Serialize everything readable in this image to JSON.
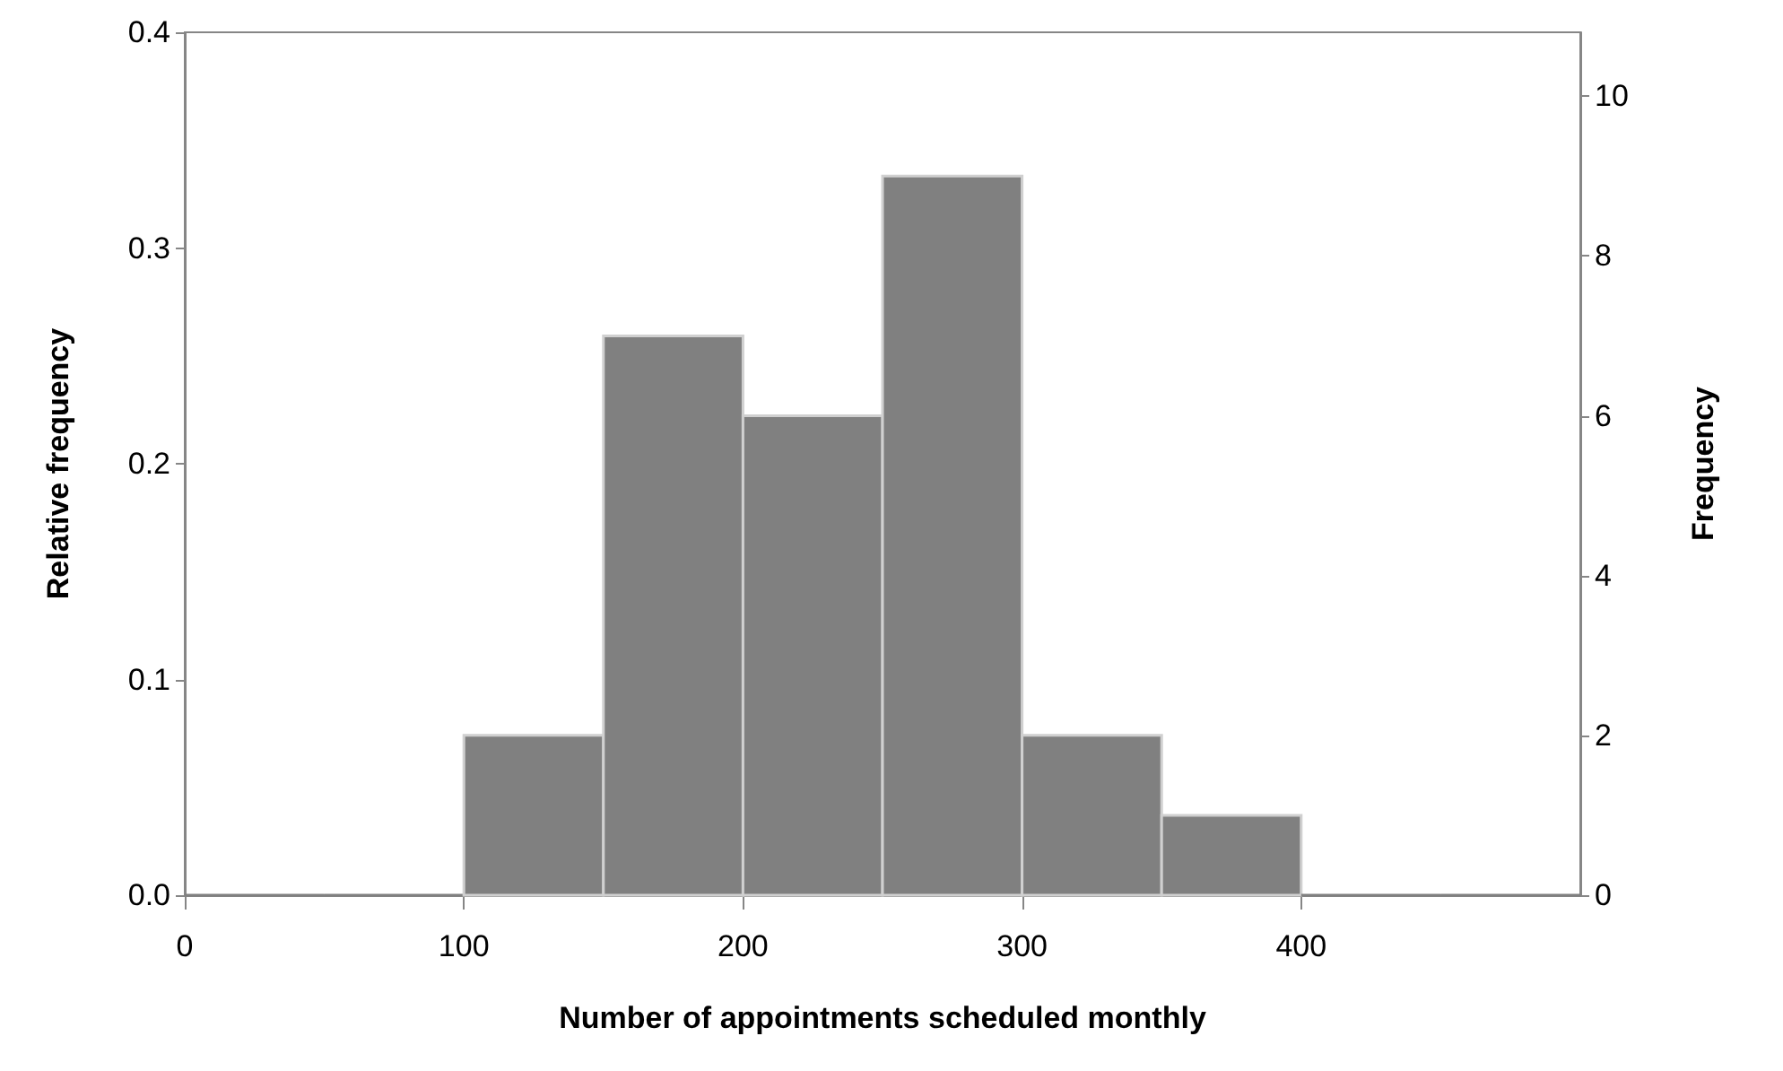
{
  "chart_data": {
    "type": "histogram",
    "xlabel": "Number of appointments scheduled monthly",
    "ylabel": "Relative frequency",
    "y2label": "Frequency",
    "bins": [
      0,
      50,
      100,
      150,
      200,
      250,
      300,
      350,
      400,
      450,
      500
    ],
    "series": [
      {
        "color": "#808080",
        "axis": "y2",
        "values": [
          0,
          0,
          2,
          7,
          6,
          9,
          2,
          1,
          0,
          0
        ]
      }
    ],
    "xlim": [
      0,
      500
    ],
    "xticks": [
      0,
      100,
      200,
      300,
      400
    ],
    "ylim": [
      0,
      0.4
    ],
    "yticks": [
      {
        "value": 0,
        "label": "0.0"
      },
      0.1,
      0.2,
      0.3,
      0.4
    ],
    "y2lim": [
      0,
      10.8
    ],
    "y2ticks": [
      0,
      2,
      4,
      6,
      8,
      10
    ],
    "grid": false
  }
}
